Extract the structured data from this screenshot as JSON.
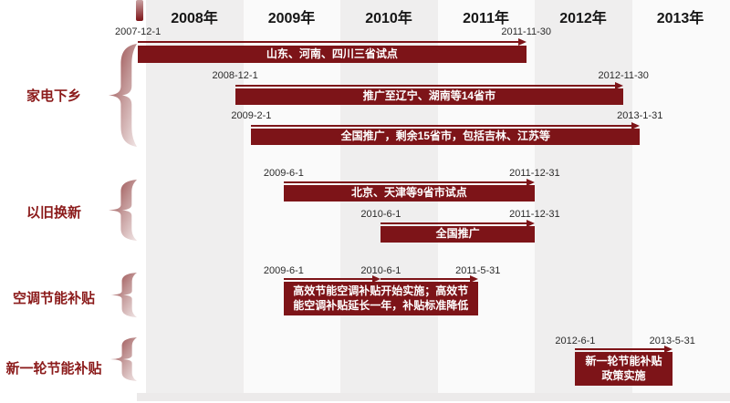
{
  "timeline": {
    "years": [
      "2008年",
      "2009年",
      "2010年",
      "2011年",
      "2012年",
      "2013年"
    ],
    "groups": [
      {
        "label": "家电下乡",
        "bars": [
          {
            "start": "2007-12-1",
            "end": "2011-11-30",
            "label": "山东、河南、四川三省试点"
          },
          {
            "start": "2008-12-1",
            "end": "2012-11-30",
            "label": "推广至辽宁、湖南等14省市"
          },
          {
            "start": "2009-2-1",
            "end": "2013-1-31",
            "label": "全国推广，剩余15省市，包括吉林、江苏等"
          }
        ]
      },
      {
        "label": "以旧换新",
        "bars": [
          {
            "start": "2009-6-1",
            "end": "2011-12-31",
            "label": "北京、天津等9省市试点"
          },
          {
            "start": "2010-6-1",
            "end": "2011-12-31",
            "label": "全国推广"
          }
        ]
      },
      {
        "label": "空调节能补贴",
        "bars": [
          {
            "start": "2009-6-1",
            "mid": "2010-6-1",
            "end": "2011-5-31",
            "label_lines": [
              "高效节能空调补贴开始实施；高效节",
              "能空调补贴延长一年，补贴标准降低"
            ]
          }
        ]
      },
      {
        "label": "新一轮节能补贴",
        "bars": [
          {
            "start": "2012-6-1",
            "end": "2013-5-31",
            "label_lines": [
              "新一轮节能补贴",
              "政策实施"
            ]
          }
        ]
      }
    ]
  },
  "colors": {
    "bar": "#7d1418",
    "arrow": "#7d1418",
    "column_gray": "#efeeee",
    "column_white": "#fafafa",
    "bottom_strip": "#eceaea",
    "group_label": "#8b1a1a",
    "year_label": "#161616",
    "date_label": "#2b2b2b"
  },
  "chart_data": {
    "type": "bar",
    "subtype": "gantt-timeline",
    "title": "",
    "xlabel": "",
    "ylabel": "",
    "x_axis": {
      "unit": "year",
      "ticks": [
        "2008年",
        "2009年",
        "2010年",
        "2011年",
        "2012年",
        "2013年"
      ],
      "range": [
        "2008-1-1",
        "2013-12-31"
      ]
    },
    "grid": "alternating-year-bands",
    "tasks": [
      {
        "group": "家电下乡",
        "start": "2007-12-1",
        "end": "2011-11-30",
        "label": "山东、河南、四川三省试点"
      },
      {
        "group": "家电下乡",
        "start": "2008-12-1",
        "end": "2012-11-30",
        "label": "推广至辽宁、湖南等14省市"
      },
      {
        "group": "家电下乡",
        "start": "2009-2-1",
        "end": "2013-1-31",
        "label": "全国推广，剩余15省市，包括吉林、江苏等"
      },
      {
        "group": "以旧换新",
        "start": "2009-6-1",
        "end": "2011-12-31",
        "label": "北京、天津等9省市试点"
      },
      {
        "group": "以旧换新",
        "start": "2010-6-1",
        "end": "2011-12-31",
        "label": "全国推广"
      },
      {
        "group": "空调节能补贴",
        "start": "2009-6-1",
        "milestone": "2010-6-1",
        "end": "2011-5-31",
        "label": "高效节能空调补贴开始实施；高效节能空调补贴延长一年，补贴标准降低"
      },
      {
        "group": "新一轮节能补贴",
        "start": "2012-6-1",
        "end": "2013-5-31",
        "label": "新一轮节能补贴政策实施"
      }
    ]
  }
}
